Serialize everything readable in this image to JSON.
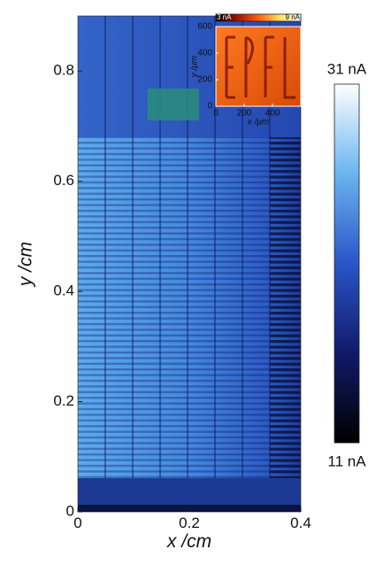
{
  "chart_data": [
    {
      "type": "heatmap",
      "xlabel": "x /cm",
      "ylabel": "y /cm",
      "xlim": [
        0,
        0.4
      ],
      "ylim": [
        0,
        0.9
      ],
      "xticks": [
        0,
        0.2,
        0.4
      ],
      "yticks": [
        0,
        0.2,
        0.4,
        0.6,
        0.8
      ],
      "colormap": [
        "#000000",
        "#101a6a",
        "#2a55c8",
        "#6ab4f0",
        "#ffffff"
      ],
      "colorbar": {
        "lim": [
          11,
          31
        ],
        "ticks": [
          {
            "value": 11,
            "label": "11 nA"
          },
          {
            "value": 31,
            "label": "31 nA"
          }
        ]
      }
    },
    {
      "type": "heatmap",
      "xlabel": "x /μm",
      "ylabel": "y /μm",
      "xlim": [
        0,
        600
      ],
      "ylim": [
        0,
        600
      ],
      "xticks": [
        0,
        200,
        400
      ],
      "yticks": [
        0,
        200,
        400,
        600
      ],
      "colormap": [
        "#000000",
        "#a01000",
        "#ff6010",
        "#ffe060",
        "#ffffff"
      ],
      "colorbar": {
        "lim": [
          3,
          9
        ],
        "ticks": [
          {
            "value": 3,
            "label": "3 nA"
          },
          {
            "value": 9,
            "label": "9 nA"
          }
        ]
      }
    }
  ]
}
